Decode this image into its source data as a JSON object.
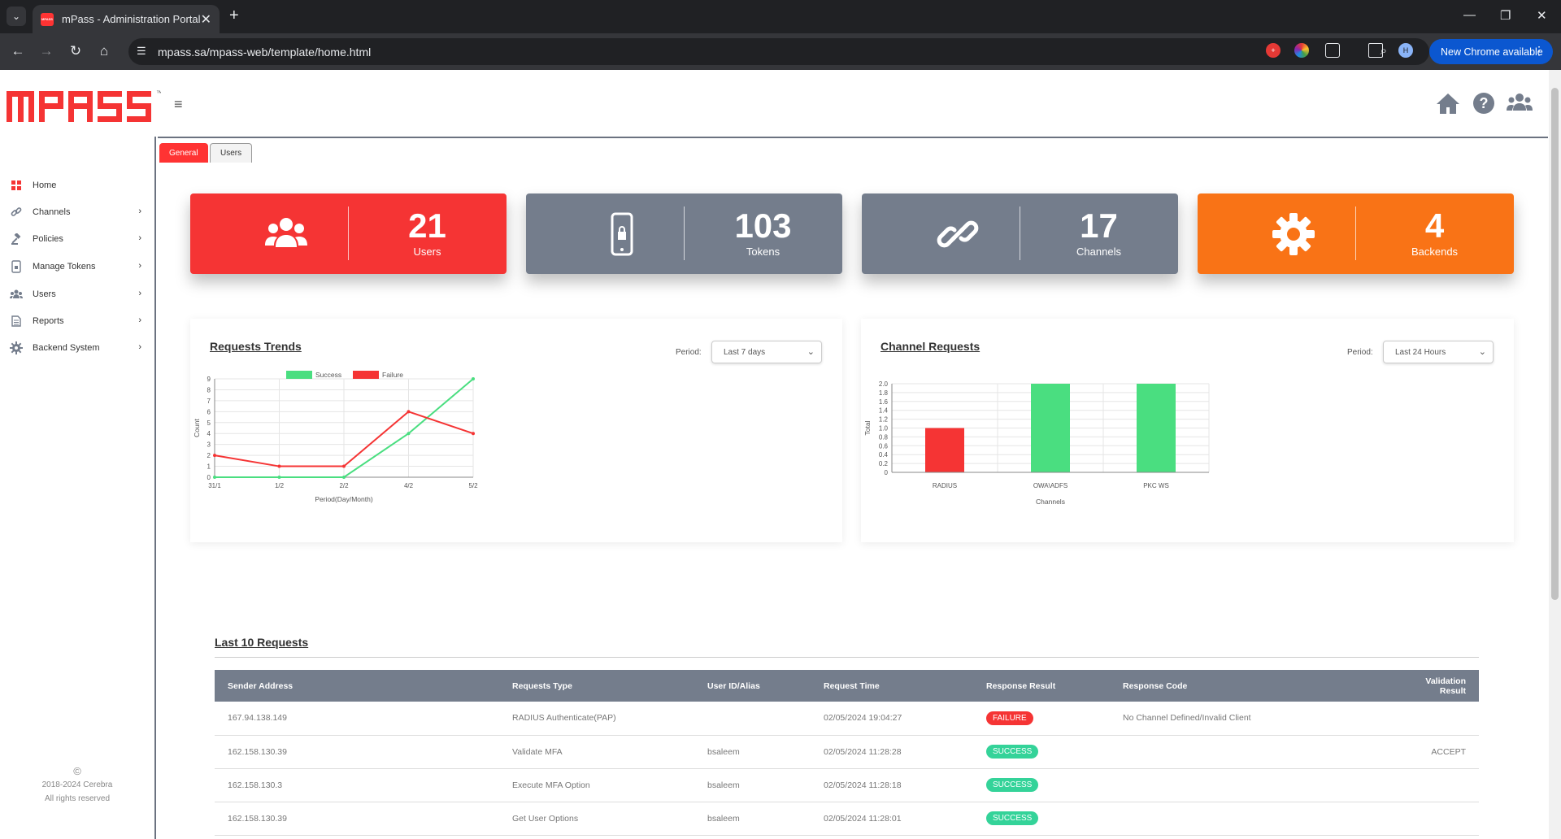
{
  "browser": {
    "tab_title": "mPass - Administration Portal",
    "url": "mpass.sa/mpass-web/template/home.html",
    "new_chrome_label": "New Chrome available",
    "profile_initial": "H",
    "favicon_text": "MPASS"
  },
  "app": {
    "logo_text": "MPASS",
    "trademark": "™"
  },
  "sidebar": {
    "items": [
      {
        "label": "Home",
        "icon": "grid-icon"
      },
      {
        "label": "Channels",
        "icon": "link-icon"
      },
      {
        "label": "Policies",
        "icon": "gavel-icon"
      },
      {
        "label": "Manage Tokens",
        "icon": "phone-lock-icon"
      },
      {
        "label": "Users",
        "icon": "users-icon"
      },
      {
        "label": "Reports",
        "icon": "document-icon"
      },
      {
        "label": "Backend System",
        "icon": "gear-icon"
      }
    ],
    "copyright_symbol": "©",
    "copyright_years": "2018-2024 Cerebra",
    "copyright_rights": "All rights reserved"
  },
  "page_tabs": {
    "general": "General",
    "users": "Users"
  },
  "stats": [
    {
      "value": "21",
      "label": "Users",
      "color": "#f53434",
      "icon": "users-icon"
    },
    {
      "value": "103",
      "label": "Tokens",
      "color": "#747d8c",
      "icon": "phone-lock-icon"
    },
    {
      "value": "17",
      "label": "Channels",
      "color": "#747d8c",
      "icon": "link-icon"
    },
    {
      "value": "4",
      "label": "Backends",
      "color": "#f97316",
      "icon": "gear-icon"
    }
  ],
  "trends": {
    "title": "Requests Trends",
    "period_label": "Period:",
    "period_value": "Last 7 days"
  },
  "channels": {
    "title": "Channel Requests",
    "period_label": "Period:",
    "period_value": "Last 24 Hours"
  },
  "chart_data": [
    {
      "type": "line",
      "x": [
        "31/1",
        "1/2",
        "2/2",
        "4/2",
        "5/2"
      ],
      "series": [
        {
          "name": "Success",
          "values": [
            0,
            0,
            0,
            4,
            9
          ],
          "color": "#4ade80"
        },
        {
          "name": "Failure",
          "values": [
            2,
            1,
            1,
            6,
            4
          ],
          "color": "#f53434"
        }
      ],
      "xlabel": "Period(Day/Month)",
      "ylabel": "Count",
      "ylim": [
        0,
        9
      ],
      "yticks": [
        "0",
        "1",
        "2",
        "3",
        "4",
        "5",
        "6",
        "7",
        "8",
        "9"
      ],
      "legend": "top",
      "grid": true
    },
    {
      "type": "bar",
      "categories": [
        "RADIUS",
        "OWA\\ADFS",
        "PKC WS"
      ],
      "values": [
        1,
        2,
        2
      ],
      "colors": [
        "#f53434",
        "#4ade80",
        "#4ade80"
      ],
      "xlabel": "Channels",
      "ylabel": "Total",
      "ylim": [
        0,
        2
      ],
      "yticks": [
        "0",
        "0.2",
        "0.4",
        "0.6",
        "0.8",
        "1.0",
        "1.2",
        "1.4",
        "1.6",
        "1.8",
        "2.0"
      ],
      "grid": true
    }
  ],
  "requests": {
    "title": "Last 10 Requests",
    "columns": [
      "Sender Address",
      "Requests Type",
      "User ID/Alias",
      "Request Time",
      "Response Result",
      "Response Code",
      "Validation Result"
    ],
    "rows": [
      {
        "sender": "167.94.138.149",
        "type": "RADIUS Authenticate(PAP)",
        "user": "",
        "time": "02/05/2024 19:04:27",
        "result": "FAILURE",
        "code": "No Channel Defined/Invalid Client",
        "validation": ""
      },
      {
        "sender": "162.158.130.39",
        "type": "Validate MFA",
        "user": "bsaleem",
        "time": "02/05/2024 11:28:28",
        "result": "SUCCESS",
        "code": "",
        "validation": "ACCEPT"
      },
      {
        "sender": "162.158.130.3",
        "type": "Execute MFA Option",
        "user": "bsaleem",
        "time": "02/05/2024 11:28:18",
        "result": "SUCCESS",
        "code": "",
        "validation": ""
      },
      {
        "sender": "162.158.130.39",
        "type": "Get User Options",
        "user": "bsaleem",
        "time": "02/05/2024 11:28:01",
        "result": "SUCCESS",
        "code": "",
        "validation": ""
      }
    ],
    "result_colors": {
      "FAILURE": "#f53434",
      "SUCCESS": "#34d399"
    }
  }
}
